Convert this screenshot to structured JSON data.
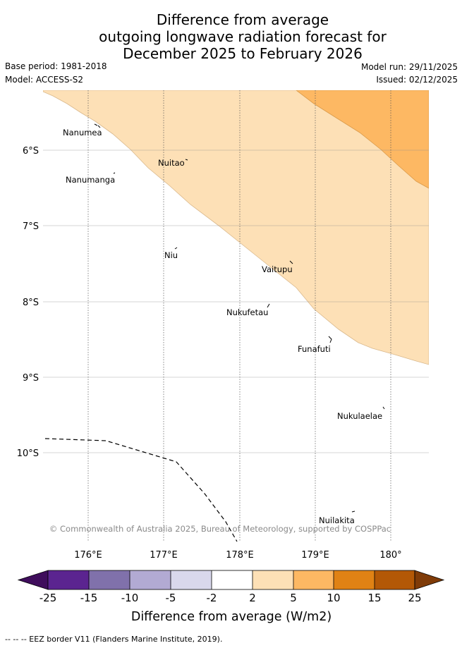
{
  "title": {
    "line1": "Difference from average",
    "line2": "outgoing longwave radiation forecast for",
    "line3": "December 2025 to February 2026"
  },
  "meta": {
    "base_period": "Base period: 1981-2018",
    "model": "Model: ACCESS-S2",
    "model_run": "Model run: 29/11/2025",
    "issued": "Issued: 02/12/2025"
  },
  "map": {
    "latitude_labels": [
      "6°S",
      "7°S",
      "8°S",
      "9°S",
      "10°S"
    ],
    "longitude_labels": [
      "176°E",
      "177°E",
      "178°E",
      "179°E",
      "180°"
    ],
    "places": [
      {
        "name": "Nanumea"
      },
      {
        "name": "Nuitao"
      },
      {
        "name": "Nanumanga"
      },
      {
        "name": "Niu"
      },
      {
        "name": "Vaitupu"
      },
      {
        "name": "Nukufetau"
      },
      {
        "name": "Funafuti"
      },
      {
        "name": "Nukulaelae"
      },
      {
        "name": "Nuilakita"
      }
    ],
    "copyright": "© Commonwealth of Australia 2025, Bureau of Meteorology, supported by COSPPac"
  },
  "colorbar": {
    "tick_labels": [
      "-25",
      "-15",
      "-10",
      "-5",
      "-2",
      "2",
      "5",
      "10",
      "15",
      "25"
    ],
    "colors": [
      "#3f0d5c",
      "#5b2490",
      "#8071ab",
      "#b2aad3",
      "#d9d8ec",
      "#ffffff",
      "#fde0b6",
      "#fdb863",
      "#e08214",
      "#b35806",
      "#7f3b08"
    ],
    "label": "Difference from average (W/m2)"
  },
  "footnote": "--  --  -- EEZ border V11 (Flanders Marine Institute, 2019).",
  "colors": {
    "anomaly_2_5": "#fde0b6",
    "anomaly_5_10": "#fdb863",
    "gridline": "#8c8c8c"
  }
}
